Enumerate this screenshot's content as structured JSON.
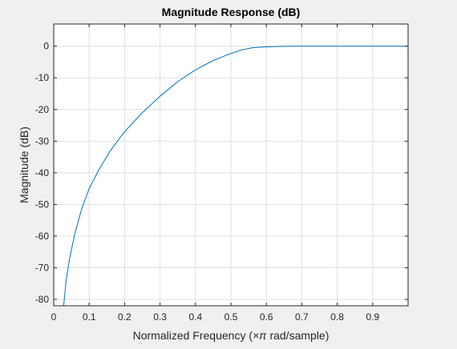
{
  "figure": {
    "background": "#f0f0f0",
    "axes_background": "#ffffff"
  },
  "chart_data": {
    "type": "line",
    "title": "Magnitude Response (dB)",
    "xlabel_prefix": "Normalized Frequency  (",
    "xlabel_symbol": "×π",
    "xlabel_suffix": " rad/sample)",
    "ylabel": "Magnitude (dB)",
    "xlim": [
      0,
      1
    ],
    "ylim": [
      -82,
      7
    ],
    "xticks": [
      0,
      0.1,
      0.2,
      0.3,
      0.4,
      0.5,
      0.6,
      0.7,
      0.8,
      0.9
    ],
    "xtick_labels": [
      "0",
      "0.1",
      "0.2",
      "0.3",
      "0.4",
      "0.5",
      "0.6",
      "0.7",
      "0.8",
      "0.9"
    ],
    "yticks": [
      0,
      -10,
      -20,
      -30,
      -40,
      -50,
      -60,
      -70,
      -80
    ],
    "ytick_labels": [
      "0",
      "-10",
      "-20",
      "-30",
      "-40",
      "-50",
      "-60",
      "-70",
      "-80"
    ],
    "grid": true,
    "line_color": "#0072bd",
    "series": [
      {
        "x": [
          0.028,
          0.035,
          0.045,
          0.06,
          0.08,
          0.1,
          0.13,
          0.16,
          0.2,
          0.25,
          0.3,
          0.35,
          0.4,
          0.45,
          0.5,
          0.53,
          0.56,
          0.6,
          0.65,
          0.7,
          0.8,
          0.9,
          1.0
        ],
        "y": [
          -82,
          -74,
          -67,
          -59,
          -51,
          -45,
          -38.5,
          -33,
          -27,
          -21,
          -15.8,
          -11.2,
          -7.5,
          -4.5,
          -2.3,
          -1.2,
          -0.5,
          -0.2,
          -0.05,
          0,
          0,
          0,
          0
        ]
      }
    ]
  }
}
